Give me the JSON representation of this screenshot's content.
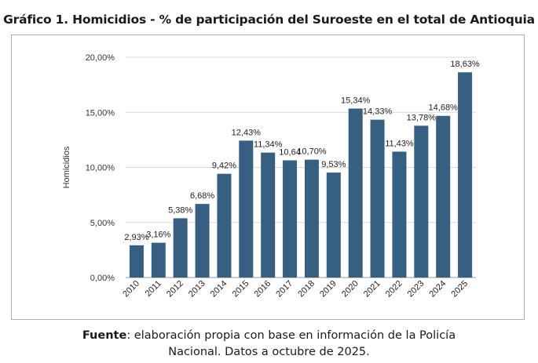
{
  "title": "Gráfico 1. Homicidios - % de participación del Suroeste en el total de Antioquia",
  "caption": {
    "bold": "Fuente",
    "rest": ": elaboración propia con base en información de la Policía",
    "line2": "Nacional. Datos a octubre de 2025."
  },
  "chart_data": {
    "type": "bar",
    "title": "Gráfico 1. Homicidios - % de participación del Suroeste en el total de Antioquia",
    "xlabel": "",
    "ylabel": "Homicidios",
    "categories": [
      "2010",
      "2011",
      "2012",
      "2013",
      "2014",
      "2015",
      "2016",
      "2017",
      "2018",
      "2019",
      "2020",
      "2021",
      "2022",
      "2023",
      "2024",
      "2025"
    ],
    "values": [
      2.93,
      3.16,
      5.38,
      6.68,
      9.42,
      12.43,
      11.34,
      10.64,
      10.7,
      9.53,
      15.34,
      14.33,
      11.43,
      13.78,
      14.68,
      18.63
    ],
    "data_labels": [
      "2,93%",
      "3,16%",
      "5,38%",
      "6,68%",
      "9,42%",
      "12,43%",
      "11,34%",
      "10,64",
      "10,70%",
      "9,53%",
      "15,34%",
      "14,33%",
      "11,43%",
      "13,78%",
      "14,68%",
      "18,63%"
    ],
    "y_ticks": [
      0,
      5,
      10,
      15,
      20
    ],
    "y_tick_labels": [
      "0,00%",
      "5,00%",
      "10,00%",
      "15,00%",
      "20,00%"
    ],
    "ylim": [
      0,
      20
    ],
    "grid": true,
    "legend": "none",
    "bar_color": "#365f82"
  }
}
